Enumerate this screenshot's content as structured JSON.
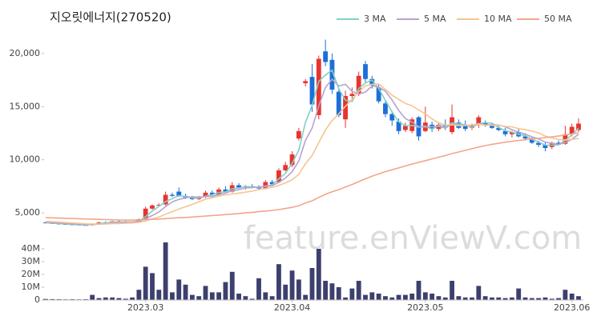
{
  "chart_data": [
    {
      "type": "candlestick",
      "title": "지오릿에너지(270520)",
      "watermark": "feature.enViewV.com",
      "up_color": "#e8342e",
      "down_color": "#1c6fd8",
      "open": [
        4100,
        4050,
        4000,
        3950,
        3920,
        3900,
        3860,
        3850,
        3980,
        4100,
        4050,
        4200,
        4150,
        4100,
        4150,
        4400,
        5400,
        5700,
        5800,
        6700,
        7000,
        6600,
        6400,
        6300,
        6500,
        6900,
        6700,
        7200,
        7000,
        7600,
        7400,
        7500,
        7400,
        7300,
        7900,
        7900,
        9000,
        9500,
        12000,
        17200,
        17800,
        14200,
        20200,
        19400,
        16400,
        13800,
        16000,
        16200,
        19000,
        17600,
        16800,
        15300,
        14300,
        13600,
        12800,
        12700,
        14000,
        12700,
        13300,
        12900,
        13300,
        12600,
        13500,
        13300,
        13000,
        13300,
        13500,
        13300,
        13000,
        12700,
        12400,
        12600,
        12200,
        11900,
        11600,
        11400,
        11200,
        11600,
        11500,
        12400,
        12800
      ],
      "high": [
        4150,
        4100,
        4050,
        4000,
        3980,
        3950,
        3920,
        4000,
        4150,
        4200,
        4250,
        4300,
        4250,
        4200,
        4450,
        5600,
        5800,
        5900,
        7000,
        6900,
        7400,
        6800,
        6600,
        6600,
        7100,
        7100,
        7400,
        7500,
        7900,
        7800,
        7600,
        7700,
        7600,
        8100,
        8100,
        9200,
        9800,
        10800,
        13000,
        17600,
        19000,
        19800,
        21300,
        20000,
        16800,
        16500,
        16800,
        18300,
        19300,
        17900,
        17100,
        15600,
        14600,
        13900,
        13500,
        14000,
        14100,
        15000,
        13600,
        13500,
        13800,
        15200,
        13800,
        13700,
        13400,
        14200,
        13700,
        13500,
        13300,
        13000,
        12700,
        12900,
        12500,
        12100,
        11800,
        11600,
        11700,
        11800,
        13200,
        13400,
        13900
      ],
      "low": [
        4000,
        3950,
        3900,
        3880,
        3850,
        3820,
        3800,
        3800,
        3950,
        4000,
        4000,
        4100,
        4050,
        4000,
        4100,
        4350,
        5300,
        5600,
        5700,
        6500,
        6500,
        6300,
        6200,
        6200,
        6400,
        6600,
        6600,
        6900,
        6900,
        7300,
        7200,
        7300,
        7200,
        7200,
        7600,
        7800,
        8900,
        9300,
        11800,
        16900,
        14500,
        13800,
        18800,
        16200,
        14000,
        13000,
        15600,
        16000,
        17300,
        16700,
        15300,
        14000,
        13200,
        12400,
        12600,
        12500,
        11800,
        12600,
        12600,
        12700,
        12800,
        12400,
        12900,
        12700,
        12800,
        13000,
        13100,
        12900,
        12700,
        12200,
        12100,
        12100,
        11800,
        11500,
        11200,
        10800,
        11000,
        11400,
        11400,
        12200,
        12600
      ],
      "close": [
        4050,
        4000,
        3950,
        3920,
        3900,
        3860,
        3850,
        3980,
        4100,
        4050,
        4200,
        4150,
        4100,
        4150,
        4400,
        5400,
        5700,
        5750,
        6700,
        6600,
        6600,
        6400,
        6300,
        6500,
        6900,
        6700,
        7200,
        7000,
        7600,
        7400,
        7500,
        7400,
        7300,
        7900,
        7700,
        9000,
        9500,
        10500,
        12700,
        17400,
        15200,
        19500,
        19200,
        16600,
        14200,
        16000,
        16200,
        17900,
        17600,
        17000,
        15500,
        14300,
        13700,
        12700,
        13200,
        13800,
        12200,
        13500,
        12900,
        13300,
        13100,
        14000,
        13000,
        12900,
        13200,
        14000,
        13300,
        13000,
        12800,
        12400,
        12600,
        12200,
        12000,
        11600,
        11400,
        11100,
        11600,
        11500,
        12400,
        13100,
        13400
      ],
      "series": [
        {
          "name": "3 MA",
          "color": "#7fd1c7",
          "values": [
            4080,
            4030,
            4000,
            3960,
            3920,
            3890,
            3870,
            3900,
            3980,
            4040,
            4120,
            4130,
            4150,
            4130,
            4220,
            4650,
            5170,
            5620,
            6050,
            6350,
            6630,
            6530,
            6430,
            6400,
            6570,
            6700,
            6930,
            6970,
            7270,
            7330,
            7500,
            7430,
            7400,
            7530,
            7630,
            8200,
            8730,
            9670,
            10900,
            13530,
            15100,
            17370,
            17970,
            18430,
            16670,
            15600,
            15470,
            16700,
            17230,
            17500,
            16700,
            15600,
            14500,
            13570,
            13200,
            13230,
            13070,
            13170,
            12870,
            13230,
            13100,
            13470,
            13370,
            13300,
            13030,
            13370,
            13500,
            13430,
            13030,
            12730,
            12600,
            12400,
            12270,
            11930,
            11670,
            11370,
            11370,
            11400,
            11830,
            12330,
            12970
          ]
        },
        {
          "name": "5 MA",
          "color": "#b9a2d0",
          "values": [
            4100,
            4060,
            4020,
            3990,
            3960,
            3930,
            3900,
            3900,
            3940,
            3970,
            4040,
            4100,
            4120,
            4130,
            4210,
            4440,
            4750,
            5080,
            5590,
            6030,
            6270,
            6410,
            6520,
            6480,
            6540,
            6560,
            6720,
            6860,
            7080,
            7180,
            7340,
            7380,
            7440,
            7500,
            7560,
            7860,
            8280,
            8880,
            9880,
            11820,
            12980,
            15060,
            16800,
            17580,
            16940,
            17100,
            16440,
            16180,
            16380,
            16940,
            16840,
            16460,
            15620,
            14640,
            13880,
            13540,
            13120,
            13080,
            13120,
            13140,
            12980,
            13360,
            13260,
            13260,
            13240,
            13420,
            13280,
            13280,
            13260,
            13100,
            12820,
            12600,
            12400,
            12160,
            11960,
            11660,
            11540,
            11440,
            11600,
            11940,
            12400
          ]
        },
        {
          "name": "10 MA",
          "color": "#f5c590",
          "values": [
            4200,
            4170,
            4130,
            4090,
            4050,
            4010,
            3970,
            3950,
            3950,
            3950,
            3980,
            4000,
            4020,
            4050,
            4100,
            4250,
            4430,
            4610,
            4870,
            5120,
            5360,
            5580,
            5800,
            6040,
            6290,
            6420,
            6570,
            6690,
            6780,
            6860,
            6950,
            7050,
            7190,
            7300,
            7400,
            7580,
            7830,
            8120,
            8630,
            9620,
            10400,
            11610,
            12790,
            13680,
            14330,
            15030,
            15690,
            16420,
            16950,
            17110,
            17140,
            16620,
            16070,
            15680,
            15300,
            15080,
            14680,
            14320,
            13850,
            13480,
            13250,
            13280,
            13210,
            13220,
            13270,
            13350,
            13260,
            13240,
            13230,
            13140,
            13100,
            12920,
            12830,
            12700,
            12520,
            12230,
            12060,
            11910,
            11870,
            11920,
            12000
          ]
        },
        {
          "name": "50 MA",
          "color": "#f4a58a",
          "values": [
            4550,
            4530,
            4510,
            4490,
            4470,
            4450,
            4430,
            4410,
            4390,
            4370,
            4350,
            4330,
            4320,
            4320,
            4330,
            4360,
            4390,
            4420,
            4460,
            4500,
            4540,
            4570,
            4610,
            4650,
            4700,
            4740,
            4790,
            4840,
            4890,
            4940,
            5000,
            5050,
            5110,
            5170,
            5230,
            5310,
            5410,
            5520,
            5680,
            5930,
            6140,
            6450,
            6750,
            6990,
            7190,
            7430,
            7670,
            7940,
            8200,
            8450,
            8670,
            8880,
            9060,
            9230,
            9410,
            9590,
            9750,
            9920,
            10080,
            10240,
            10400,
            10580,
            10730,
            10890,
            11040,
            11200,
            11330,
            11450,
            11550,
            11650,
            11740,
            11820,
            11890,
            11960,
            12020,
            12090,
            12160,
            12230,
            12330,
            12430,
            12530
          ]
        }
      ],
      "ylim": [
        3200,
        22400
      ],
      "yticks": [
        {
          "value": 5000,
          "label": "5,000"
        },
        {
          "value": 10000,
          "label": "10,000"
        },
        {
          "value": 15000,
          "label": "15,000"
        },
        {
          "value": 20000,
          "label": "20,000"
        }
      ],
      "grid": false,
      "legend": "top-right"
    },
    {
      "type": "bar",
      "color": "#3d3f6e",
      "categories": [
        null,
        null,
        null,
        null,
        null,
        null,
        null,
        null,
        null,
        null,
        null,
        null,
        null,
        null,
        null,
        "2023.03",
        null,
        null,
        null,
        null,
        null,
        null,
        null,
        null,
        null,
        null,
        null,
        null,
        null,
        null,
        null,
        null,
        null,
        null,
        null,
        null,
        null,
        "2023.04",
        null,
        null,
        null,
        null,
        null,
        null,
        null,
        null,
        null,
        null,
        null,
        null,
        null,
        null,
        null,
        null,
        null,
        null,
        null,
        "2023.05",
        null,
        null,
        null,
        null,
        null,
        null,
        null,
        null,
        null,
        null,
        null,
        null,
        null,
        null,
        null,
        null,
        null,
        null,
        null,
        null,
        null,
        "2023.06",
        null
      ],
      "values": [
        800000,
        700000,
        600000,
        500000,
        600000,
        500000,
        600000,
        4000000,
        1500000,
        2000000,
        2000000,
        1500000,
        1000000,
        2000000,
        8000000,
        26000000,
        21000000,
        8000000,
        45000000,
        6000000,
        16000000,
        12000000,
        4000000,
        3000000,
        11000000,
        6000000,
        6000000,
        14000000,
        22000000,
        5000000,
        3000000,
        1000000,
        17000000,
        6000000,
        3000000,
        28000000,
        12000000,
        23000000,
        16000000,
        4000000,
        25000000,
        40000000,
        15000000,
        13000000,
        10000000,
        2000000,
        9000000,
        15000000,
        4000000,
        6000000,
        5000000,
        3000000,
        2000000,
        4000000,
        4000000,
        5000000,
        15000000,
        6000000,
        5000000,
        3000000,
        2000000,
        15000000,
        3000000,
        2000000,
        2000000,
        11000000,
        3000000,
        2000000,
        2000000,
        1500000,
        2000000,
        9000000,
        2000000,
        1500000,
        1500000,
        2000000,
        1000000,
        1500000,
        8000000,
        5000000,
        3000000
      ],
      "ylim": [
        0,
        45000000
      ],
      "yticks": [
        0,
        {
          "value": 10000000,
          "label": "10M"
        },
        {
          "value": 20000000,
          "label": "20M"
        },
        {
          "value": 30000000,
          "label": "30M"
        },
        {
          "value": 40000000,
          "label": "40M"
        }
      ],
      "grid": false
    }
  ]
}
